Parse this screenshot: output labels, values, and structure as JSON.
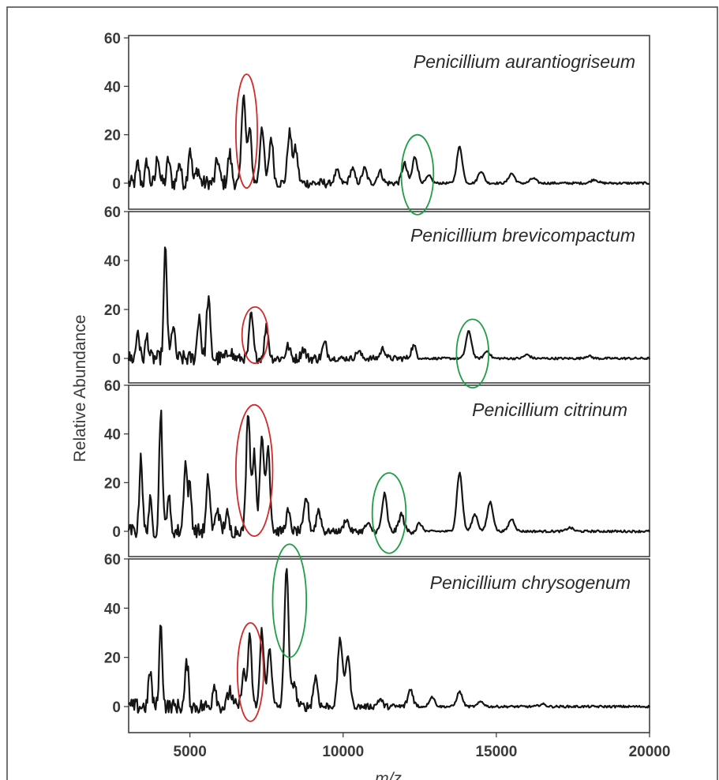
{
  "chart_data": {
    "type": "line",
    "ylabel": "Relative Abundance",
    "xlabel": "m/z",
    "xlim": [
      3000,
      20000
    ],
    "ylim": [
      0,
      60
    ],
    "x_ticks": [
      "5000",
      "10000",
      "15000",
      "20000"
    ],
    "y_ticks": [
      "0",
      "20",
      "40",
      "60"
    ],
    "grid": false,
    "series": [
      {
        "name": "Penicillium aurantiogriseum",
        "peaks": [
          {
            "x": 3300,
            "y": 8
          },
          {
            "x": 3600,
            "y": 9
          },
          {
            "x": 3950,
            "y": 12
          },
          {
            "x": 4300,
            "y": 10
          },
          {
            "x": 4650,
            "y": 9
          },
          {
            "x": 5000,
            "y": 15
          },
          {
            "x": 5250,
            "y": 6
          },
          {
            "x": 5900,
            "y": 10
          },
          {
            "x": 6300,
            "y": 12
          },
          {
            "x": 6750,
            "y": 38
          },
          {
            "x": 6950,
            "y": 22
          },
          {
            "x": 7350,
            "y": 24
          },
          {
            "x": 7650,
            "y": 19
          },
          {
            "x": 8250,
            "y": 21
          },
          {
            "x": 8450,
            "y": 14
          },
          {
            "x": 9800,
            "y": 5
          },
          {
            "x": 10300,
            "y": 6
          },
          {
            "x": 10700,
            "y": 6
          },
          {
            "x": 11200,
            "y": 5
          },
          {
            "x": 12000,
            "y": 8
          },
          {
            "x": 12350,
            "y": 11
          },
          {
            "x": 12800,
            "y": 3
          },
          {
            "x": 13800,
            "y": 15
          },
          {
            "x": 14500,
            "y": 5
          },
          {
            "x": 15500,
            "y": 4
          },
          {
            "x": 16200,
            "y": 2
          },
          {
            "x": 18200,
            "y": 1.5
          }
        ]
      },
      {
        "name": "Penicillium brevicompactum",
        "peaks": [
          {
            "x": 3300,
            "y": 12
          },
          {
            "x": 3600,
            "y": 9
          },
          {
            "x": 4200,
            "y": 45
          },
          {
            "x": 4450,
            "y": 14
          },
          {
            "x": 5300,
            "y": 18
          },
          {
            "x": 5600,
            "y": 25
          },
          {
            "x": 6300,
            "y": 4
          },
          {
            "x": 7000,
            "y": 18
          },
          {
            "x": 7500,
            "y": 13
          },
          {
            "x": 8200,
            "y": 5
          },
          {
            "x": 8700,
            "y": 4
          },
          {
            "x": 9400,
            "y": 6
          },
          {
            "x": 10500,
            "y": 3
          },
          {
            "x": 11300,
            "y": 4
          },
          {
            "x": 12300,
            "y": 5
          },
          {
            "x": 14100,
            "y": 11
          },
          {
            "x": 14700,
            "y": 3
          },
          {
            "x": 16000,
            "y": 1.5
          },
          {
            "x": 18000,
            "y": 1
          }
        ]
      },
      {
        "name": "Penicillium citrinum",
        "peaks": [
          {
            "x": 3400,
            "y": 32
          },
          {
            "x": 3700,
            "y": 12
          },
          {
            "x": 4050,
            "y": 50
          },
          {
            "x": 4300,
            "y": 15
          },
          {
            "x": 4850,
            "y": 28
          },
          {
            "x": 5000,
            "y": 18
          },
          {
            "x": 5600,
            "y": 22
          },
          {
            "x": 5900,
            "y": 10
          },
          {
            "x": 6200,
            "y": 7
          },
          {
            "x": 6900,
            "y": 50
          },
          {
            "x": 7100,
            "y": 32
          },
          {
            "x": 7350,
            "y": 39
          },
          {
            "x": 7550,
            "y": 35
          },
          {
            "x": 8200,
            "y": 8
          },
          {
            "x": 8800,
            "y": 14
          },
          {
            "x": 9200,
            "y": 9
          },
          {
            "x": 10100,
            "y": 5
          },
          {
            "x": 10800,
            "y": 3
          },
          {
            "x": 11350,
            "y": 15
          },
          {
            "x": 11900,
            "y": 7
          },
          {
            "x": 12500,
            "y": 3
          },
          {
            "x": 13800,
            "y": 24
          },
          {
            "x": 14300,
            "y": 7
          },
          {
            "x": 14800,
            "y": 12
          },
          {
            "x": 15500,
            "y": 5
          },
          {
            "x": 17400,
            "y": 1.5
          }
        ]
      },
      {
        "name": "Penicillium chrysogenum",
        "peaks": [
          {
            "x": 3700,
            "y": 15
          },
          {
            "x": 4050,
            "y": 33
          },
          {
            "x": 4900,
            "y": 18
          },
          {
            "x": 5800,
            "y": 10
          },
          {
            "x": 6300,
            "y": 7
          },
          {
            "x": 6750,
            "y": 14
          },
          {
            "x": 6950,
            "y": 28
          },
          {
            "x": 7350,
            "y": 31
          },
          {
            "x": 7600,
            "y": 25
          },
          {
            "x": 8150,
            "y": 57
          },
          {
            "x": 8400,
            "y": 10
          },
          {
            "x": 9100,
            "y": 12
          },
          {
            "x": 9900,
            "y": 28
          },
          {
            "x": 10150,
            "y": 21
          },
          {
            "x": 11200,
            "y": 3
          },
          {
            "x": 12200,
            "y": 7
          },
          {
            "x": 12900,
            "y": 4
          },
          {
            "x": 13800,
            "y": 6
          },
          {
            "x": 14500,
            "y": 2
          },
          {
            "x": 16500,
            "y": 1
          }
        ]
      }
    ],
    "annotations": {
      "red_ellipses": [
        {
          "series": 0,
          "x_range": [
            6500,
            7200
          ],
          "y_range": [
            -2,
            45
          ]
        },
        {
          "series": 1,
          "x_range": [
            6700,
            7550
          ],
          "y_range": [
            -2,
            21
          ]
        },
        {
          "series": 2,
          "x_range": [
            6500,
            7700
          ],
          "y_range": [
            -2,
            52
          ]
        },
        {
          "series": 3,
          "x_range": [
            6550,
            7400
          ],
          "y_range": [
            -6,
            34
          ]
        }
      ],
      "green_ellipses": [
        {
          "series": 0,
          "x_range": [
            11900,
            12950
          ],
          "y_range": [
            -13,
            20
          ]
        },
        {
          "series": 1,
          "x_range": [
            13700,
            14750
          ],
          "y_range": [
            -12,
            16
          ]
        },
        {
          "series": 2,
          "x_range": [
            10950,
            12050
          ],
          "y_range": [
            -9,
            24
          ]
        },
        {
          "series": 3,
          "x_range": [
            7700,
            8800
          ],
          "y_range": [
            20,
            66
          ]
        }
      ]
    }
  }
}
